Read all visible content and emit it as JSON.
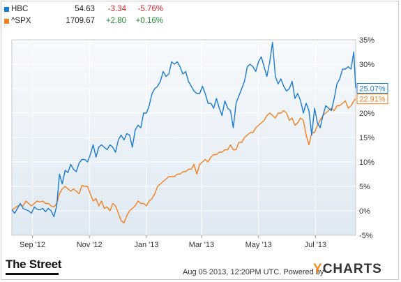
{
  "legend": [
    {
      "name": "HBC",
      "price": "54.63",
      "change": "-3.34",
      "pct": "-5.76%",
      "color": "#1a7ad0",
      "change_color": "#d0232c"
    },
    {
      "name": "^SPX",
      "price": "1709.67",
      "change": "+2.80",
      "pct": "+0.16%",
      "color": "#f47f1b",
      "change_color": "#1b8a2e"
    }
  ],
  "footer": {
    "brand": "The Street",
    "timestamp": "Aug 05 2013, 12:20PM UTC.",
    "powered_by": "Powered by",
    "ycharts_y": "Y",
    "ycharts_rest": "CHARTS"
  },
  "chart_data": {
    "type": "line",
    "x_tick_labels": [
      "Sep '12",
      "Nov '12",
      "Jan '13",
      "Mar '13",
      "May '13",
      "Jul '13"
    ],
    "x_ticks_at_day": [
      22,
      83,
      144,
      203,
      264,
      325
    ],
    "x_range_days": [
      0,
      368
    ],
    "ylim": [
      -5,
      35
    ],
    "y_ticks": [
      -5,
      0,
      5,
      10,
      15,
      20,
      25,
      30,
      35
    ],
    "y_tick_labels": [
      "-5%",
      "0%",
      "5%",
      "10%",
      "15%",
      "20%",
      "25%",
      "30%",
      "35%"
    ],
    "grid": true,
    "end_labels": [
      "25.07%",
      "22.91%"
    ],
    "series": [
      {
        "name": "HBC",
        "color": "#1a7ad0",
        "x": [
          0,
          3,
          6,
          9,
          12,
          15,
          18,
          21,
          24,
          27,
          30,
          33,
          36,
          39,
          42,
          45,
          48,
          51,
          54,
          57,
          60,
          63,
          66,
          69,
          72,
          75,
          78,
          81,
          84,
          87,
          90,
          93,
          96,
          99,
          102,
          105,
          108,
          111,
          114,
          117,
          120,
          123,
          126,
          129,
          132,
          135,
          138,
          141,
          144,
          147,
          150,
          153,
          156,
          159,
          162,
          165,
          168,
          171,
          174,
          177,
          180,
          183,
          186,
          189,
          192,
          195,
          198,
          201,
          204,
          207,
          210,
          213,
          216,
          219,
          222,
          225,
          228,
          231,
          234,
          237,
          240,
          243,
          246,
          249,
          252,
          255,
          258,
          261,
          264,
          267,
          270,
          273,
          276,
          279,
          282,
          285,
          288,
          291,
          294,
          297,
          300,
          303,
          306,
          309,
          312,
          315,
          318,
          321,
          324,
          327,
          330,
          333,
          336,
          339,
          342,
          345,
          348,
          351,
          354,
          357,
          360,
          363,
          366,
          368
        ],
        "values": [
          0.2,
          -0.5,
          0.5,
          1.5,
          0.5,
          0.2,
          0.0,
          -0.5,
          0.8,
          0.3,
          0.2,
          0.5,
          -0.2,
          0.5,
          0.0,
          -1.2,
          1.0,
          7.5,
          5.5,
          8.3,
          7.8,
          9.5,
          8.5,
          8.0,
          9.8,
          10.5,
          10.5,
          10.0,
          11.5,
          13.5,
          11.0,
          13.0,
          13.5,
          13.0,
          12.5,
          13.5,
          13.0,
          12.0,
          14.5,
          15.5,
          14.5,
          15.8,
          15.5,
          13.0,
          16.5,
          17.5,
          17.0,
          20.0,
          20.0,
          21.5,
          24.0,
          25.0,
          25.5,
          26.5,
          28.5,
          27.5,
          28.0,
          30.5,
          30.0,
          30.5,
          29.5,
          28.0,
          28.5,
          26.5,
          25.5,
          24.5,
          24.0,
          24.0,
          25.5,
          24.0,
          22.0,
          22.0,
          21.0,
          23.0,
          21.0,
          19.5,
          22.5,
          21.0,
          20.5,
          17.0,
          22.0,
          23.5,
          25.0,
          26.5,
          29.5,
          30.0,
          29.5,
          28.5,
          30.5,
          31.5,
          29.5,
          27.5,
          30.5,
          34.5,
          27.5,
          26.0,
          27.0,
          25.5,
          24.5,
          25.0,
          26.5,
          23.0,
          24.0,
          22.5,
          20.0,
          22.0,
          20.5,
          15.5,
          21.0,
          18.0,
          17.0,
          19.5,
          21.5,
          21.0,
          20.5,
          23.0,
          26.0,
          27.0,
          29.0,
          29.0,
          29.5,
          29.0,
          32.5,
          25.07
        ]
      },
      {
        "name": "^SPX",
        "color": "#f47f1b",
        "x": [
          0,
          3,
          6,
          9,
          12,
          15,
          18,
          21,
          24,
          27,
          30,
          33,
          36,
          39,
          42,
          45,
          48,
          51,
          54,
          57,
          60,
          63,
          66,
          69,
          72,
          75,
          78,
          81,
          84,
          87,
          90,
          93,
          96,
          99,
          102,
          105,
          108,
          111,
          114,
          117,
          120,
          123,
          126,
          129,
          132,
          135,
          138,
          141,
          144,
          147,
          150,
          153,
          156,
          159,
          162,
          165,
          168,
          171,
          174,
          177,
          180,
          183,
          186,
          189,
          192,
          195,
          198,
          201,
          204,
          207,
          210,
          213,
          216,
          219,
          222,
          225,
          228,
          231,
          234,
          237,
          240,
          243,
          246,
          249,
          252,
          255,
          258,
          261,
          264,
          267,
          270,
          273,
          276,
          279,
          282,
          285,
          288,
          291,
          294,
          297,
          300,
          303,
          306,
          309,
          312,
          315,
          318,
          321,
          324,
          327,
          330,
          333,
          336,
          339,
          342,
          345,
          348,
          351,
          354,
          357,
          360,
          363,
          366,
          368
        ],
        "values": [
          0.2,
          0.5,
          1.0,
          1.2,
          1.0,
          2.0,
          1.5,
          1.0,
          1.5,
          2.0,
          1.8,
          2.0,
          1.5,
          1.5,
          1.0,
          0.8,
          1.5,
          3.5,
          4.5,
          5.0,
          4.5,
          4.0,
          4.5,
          4.0,
          3.5,
          5.2,
          5.0,
          5.0,
          3.5,
          2.0,
          2.5,
          1.0,
          2.0,
          0.5,
          0.8,
          0.0,
          1.5,
          1.0,
          -0.5,
          -2.0,
          -2.5,
          -1.0,
          0.0,
          0.5,
          1.0,
          2.0,
          1.5,
          1.5,
          1.0,
          2.0,
          2.5,
          3.5,
          5.0,
          5.5,
          6.0,
          6.5,
          7.0,
          7.0,
          7.0,
          7.5,
          7.5,
          8.0,
          8.0,
          8.5,
          8.5,
          9.5,
          7.5,
          9.5,
          10.0,
          10.5,
          10.0,
          11.0,
          11.5,
          11.5,
          12.0,
          12.0,
          12.5,
          12.5,
          13.5,
          12.5,
          12.5,
          14.0,
          14.0,
          15.0,
          15.5,
          16.0,
          16.0,
          17.0,
          17.5,
          18.0,
          18.5,
          19.5,
          20.0,
          19.5,
          19.0,
          20.0,
          20.0,
          20.5,
          20.0,
          18.5,
          19.0,
          17.5,
          18.0,
          19.0,
          18.5,
          15.5,
          13.5,
          16.0,
          16.0,
          17.5,
          18.5,
          19.5,
          20.0,
          20.5,
          21.0,
          20.5,
          21.5,
          21.5,
          22.0,
          22.5,
          21.0,
          21.5,
          22.5,
          22.91
        ]
      }
    ]
  }
}
